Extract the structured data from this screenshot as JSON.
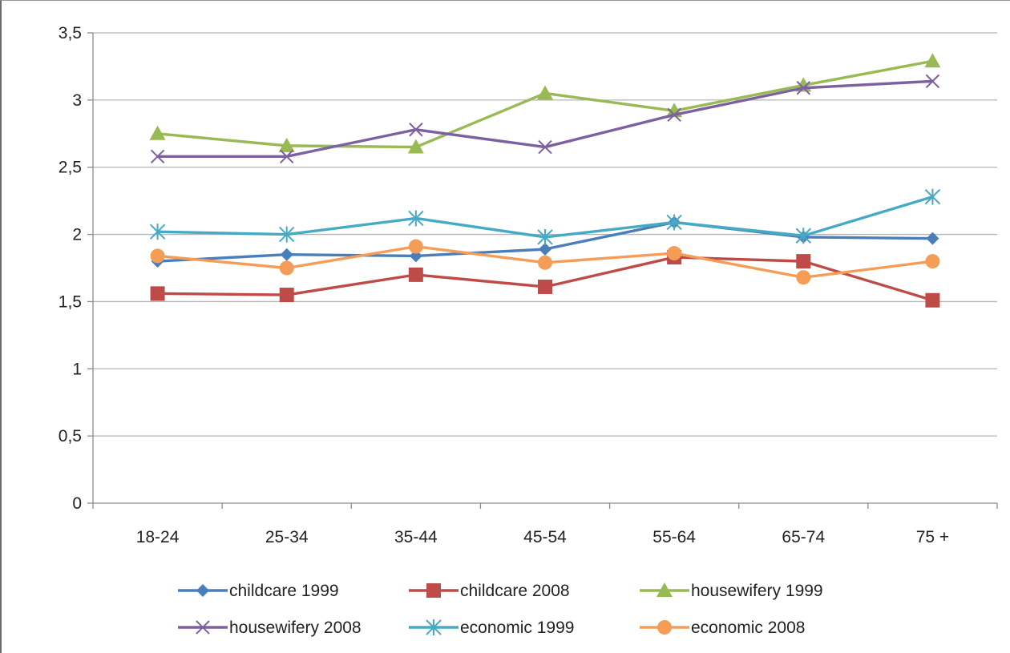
{
  "chart_data": {
    "type": "line",
    "title": "",
    "xlabel": "",
    "ylabel": "",
    "categories": [
      "18-24",
      "25-34",
      "35-44",
      "45-54",
      "55-64",
      "65-74",
      "75 +"
    ],
    "ylim": [
      0,
      3.5
    ],
    "yticks": [
      "0",
      "0,5",
      "1",
      "1,5",
      "2",
      "2,5",
      "3",
      "3,5"
    ],
    "grid": true,
    "legend_position": "bottom",
    "series": [
      {
        "name": "childcare 1999",
        "color": "#4a7ebb",
        "marker": "diamond",
        "values": [
          1.8,
          1.85,
          1.84,
          1.89,
          2.09,
          1.98,
          1.97
        ]
      },
      {
        "name": "childcare 2008",
        "color": "#be4b48",
        "marker": "square",
        "values": [
          1.56,
          1.55,
          1.7,
          1.61,
          1.83,
          1.8,
          1.51
        ]
      },
      {
        "name": "housewifery 1999",
        "color": "#98b954",
        "marker": "triangle",
        "values": [
          2.75,
          2.66,
          2.65,
          3.05,
          2.92,
          3.11,
          3.29
        ]
      },
      {
        "name": "housewifery 2008",
        "color": "#7d60a0",
        "marker": "x",
        "values": [
          2.58,
          2.58,
          2.78,
          2.65,
          2.89,
          3.09,
          3.14
        ]
      },
      {
        "name": "economic 1999",
        "color": "#46aac5",
        "marker": "star",
        "values": [
          2.02,
          2.0,
          2.12,
          1.98,
          2.09,
          1.99,
          2.28
        ]
      },
      {
        "name": "economic 2008",
        "color": "#f59d56",
        "marker": "circle",
        "values": [
          1.84,
          1.75,
          1.91,
          1.79,
          1.86,
          1.68,
          1.8
        ]
      }
    ]
  }
}
